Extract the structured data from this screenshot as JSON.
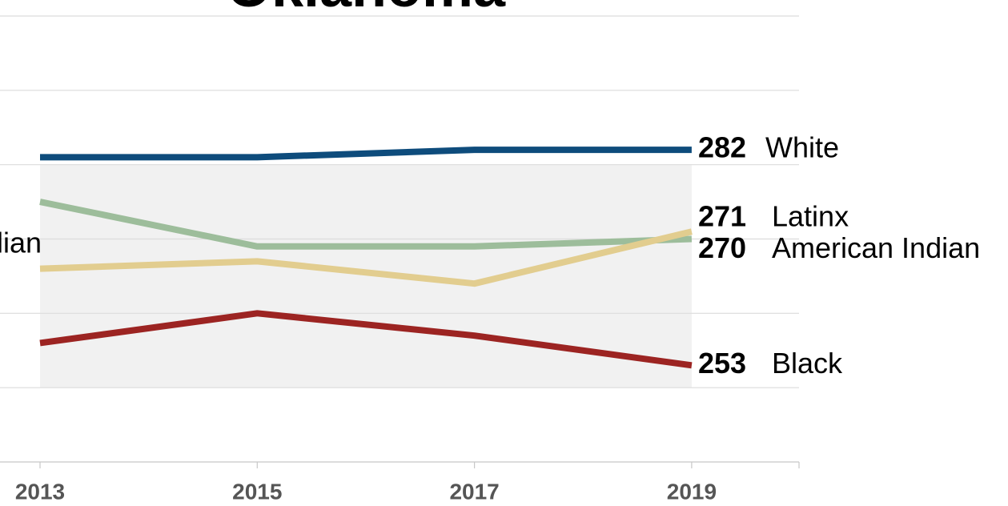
{
  "chart_data": {
    "type": "line",
    "title": "Oklahoma",
    "annotation": "lian",
    "categories": [
      "2013",
      "2015",
      "2017",
      "2019"
    ],
    "series": [
      {
        "name": "White",
        "color": "#0e4c7c",
        "values": [
          281,
          281,
          282,
          282
        ]
      },
      {
        "name": "American Indian",
        "color": "#9dbd9b",
        "values": [
          275,
          269,
          269,
          270
        ]
      },
      {
        "name": "Latinx",
        "color": "#e2cd8f",
        "values": [
          266,
          267,
          264,
          271
        ]
      },
      {
        "name": "Black",
        "color": "#9c2422",
        "values": [
          256,
          260,
          257,
          253
        ]
      }
    ],
    "band": [
      250,
      280
    ],
    "ylim": [
      240,
      300
    ],
    "yticks": [
      240,
      250,
      260,
      270,
      280,
      290,
      300
    ],
    "grid": true
  }
}
